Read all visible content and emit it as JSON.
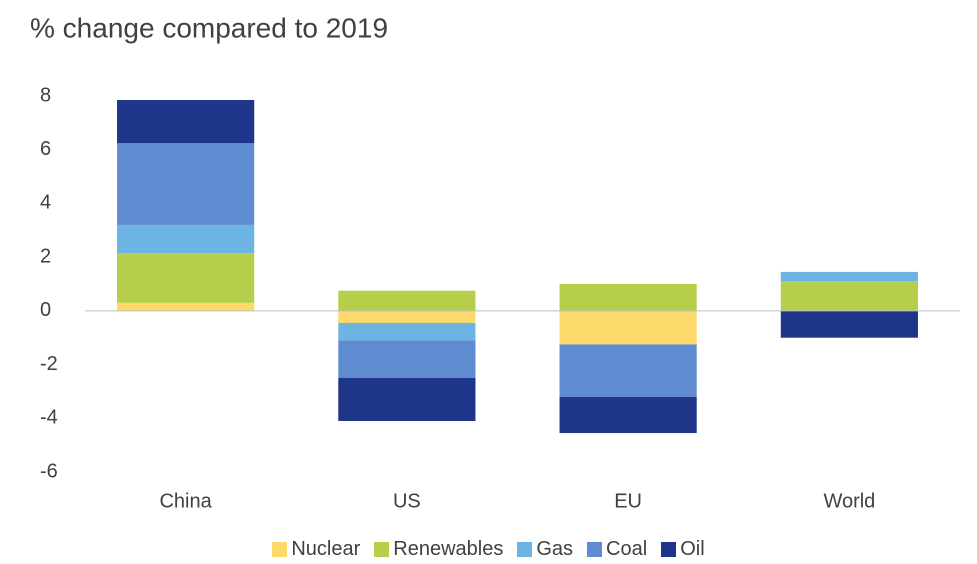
{
  "chart_data": {
    "type": "stacked_bar",
    "subtitle": "% change compared to 2019",
    "categories": [
      "China",
      "US",
      "EU",
      "World"
    ],
    "series": [
      {
        "name": "Nuclear",
        "color": "#fdd86a",
        "values": [
          0.3,
          -0.45,
          -1.25,
          0
        ]
      },
      {
        "name": "Renewables",
        "color": "#b6cf4a",
        "values": [
          1.85,
          0.75,
          1.0,
          1.1
        ]
      },
      {
        "name": "Gas",
        "color": "#6bb4e3",
        "values": [
          1.05,
          -0.65,
          0,
          0.35
        ]
      },
      {
        "name": "Coal",
        "color": "#5f8bd0",
        "values": [
          3.05,
          -1.4,
          -1.95,
          0
        ]
      },
      {
        "name": "Oil",
        "color": "#1e3589",
        "values": [
          1.6,
          -1.6,
          -1.35,
          -1.0
        ]
      }
    ],
    "ylim": [
      -6,
      8
    ],
    "yticks": [
      -6,
      -4,
      -2,
      0,
      2,
      4,
      6,
      8
    ]
  }
}
